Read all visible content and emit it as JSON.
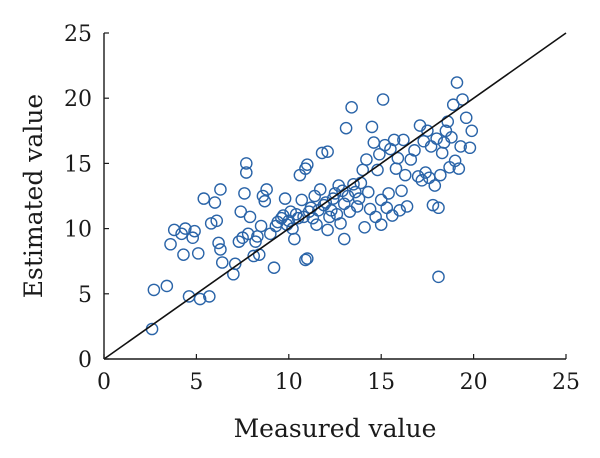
{
  "chart_data": {
    "type": "scatter",
    "xlabel": "Measured value",
    "ylabel": "Estimated value",
    "xlim": [
      0,
      25
    ],
    "ylim": [
      0,
      25
    ],
    "xticks": [
      "0",
      "5",
      "10",
      "15",
      "20",
      "25"
    ],
    "yticks": [
      "0",
      "5",
      "10",
      "15",
      "20",
      "25"
    ],
    "grid": false,
    "legend": "none",
    "reference_line": {
      "kind": "identity",
      "from": [
        0,
        0
      ],
      "to": [
        25,
        25
      ],
      "color": "#111111"
    },
    "series": [
      {
        "marker": "open-circle",
        "color": "#2a64a8",
        "points": [
          [
            2.6,
            2.3
          ],
          [
            2.7,
            5.3
          ],
          [
            3.4,
            5.6
          ],
          [
            3.6,
            8.8
          ],
          [
            3.8,
            9.9
          ],
          [
            4.2,
            9.6
          ],
          [
            4.3,
            8.0
          ],
          [
            4.4,
            10.0
          ],
          [
            4.6,
            4.8
          ],
          [
            4.8,
            9.3
          ],
          [
            4.9,
            9.8
          ],
          [
            5.1,
            8.1
          ],
          [
            5.2,
            4.6
          ],
          [
            5.4,
            12.3
          ],
          [
            5.7,
            4.8
          ],
          [
            5.8,
            10.4
          ],
          [
            6.0,
            12.0
          ],
          [
            6.1,
            10.6
          ],
          [
            6.2,
            8.9
          ],
          [
            6.3,
            13.0
          ],
          [
            6.3,
            8.4
          ],
          [
            6.4,
            7.4
          ],
          [
            7.0,
            6.5
          ],
          [
            7.1,
            7.3
          ],
          [
            7.3,
            9.0
          ],
          [
            7.4,
            11.3
          ],
          [
            7.5,
            9.3
          ],
          [
            7.6,
            12.7
          ],
          [
            7.7,
            14.3
          ],
          [
            7.7,
            15.0
          ],
          [
            7.8,
            9.6
          ],
          [
            7.9,
            10.9
          ],
          [
            8.1,
            7.9
          ],
          [
            8.2,
            9.0
          ],
          [
            8.3,
            9.4
          ],
          [
            8.4,
            8.0
          ],
          [
            8.5,
            10.2
          ],
          [
            8.6,
            12.5
          ],
          [
            8.7,
            12.1
          ],
          [
            8.8,
            13.0
          ],
          [
            9.0,
            9.6
          ],
          [
            9.2,
            7.0
          ],
          [
            9.3,
            10.2
          ],
          [
            9.4,
            10.5
          ],
          [
            9.6,
            10.8
          ],
          [
            9.7,
            11.0
          ],
          [
            9.8,
            12.3
          ],
          [
            9.9,
            10.3
          ],
          [
            10.0,
            10.6
          ],
          [
            10.1,
            11.3
          ],
          [
            10.2,
            10.0
          ],
          [
            10.3,
            9.2
          ],
          [
            10.4,
            11.1
          ],
          [
            10.5,
            10.8
          ],
          [
            10.6,
            14.1
          ],
          [
            10.7,
            12.2
          ],
          [
            10.8,
            10.9
          ],
          [
            10.9,
            7.6
          ],
          [
            10.9,
            14.6
          ],
          [
            11.0,
            7.7
          ],
          [
            11.0,
            14.9
          ],
          [
            11.1,
            11.3
          ],
          [
            11.2,
            11.6
          ],
          [
            11.3,
            10.8
          ],
          [
            11.4,
            12.5
          ],
          [
            11.5,
            10.3
          ],
          [
            11.6,
            11.4
          ],
          [
            11.7,
            13.0
          ],
          [
            11.8,
            15.8
          ],
          [
            11.9,
            11.8
          ],
          [
            12.0,
            12.0
          ],
          [
            12.1,
            15.9
          ],
          [
            12.1,
            9.9
          ],
          [
            12.2,
            10.9
          ],
          [
            12.3,
            11.4
          ],
          [
            12.4,
            12.3
          ],
          [
            12.5,
            12.7
          ],
          [
            12.6,
            11.1
          ],
          [
            12.7,
            13.3
          ],
          [
            12.8,
            10.4
          ],
          [
            12.9,
            12.9
          ],
          [
            13.0,
            11.9
          ],
          [
            13.0,
            9.2
          ],
          [
            13.1,
            17.7
          ],
          [
            13.2,
            12.5
          ],
          [
            13.3,
            11.3
          ],
          [
            13.4,
            19.3
          ],
          [
            13.5,
            13.4
          ],
          [
            13.6,
            12.8
          ],
          [
            13.7,
            11.7
          ],
          [
            13.8,
            12.3
          ],
          [
            13.9,
            13.5
          ],
          [
            14.0,
            14.5
          ],
          [
            14.1,
            10.1
          ],
          [
            14.2,
            15.3
          ],
          [
            14.3,
            12.8
          ],
          [
            14.4,
            11.5
          ],
          [
            14.5,
            17.8
          ],
          [
            14.6,
            16.6
          ],
          [
            14.7,
            10.9
          ],
          [
            14.8,
            14.5
          ],
          [
            14.9,
            15.7
          ],
          [
            15.0,
            10.3
          ],
          [
            15.0,
            12.2
          ],
          [
            15.1,
            19.9
          ],
          [
            15.2,
            16.4
          ],
          [
            15.3,
            11.6
          ],
          [
            15.4,
            12.7
          ],
          [
            15.5,
            16.1
          ],
          [
            15.6,
            11.0
          ],
          [
            15.7,
            16.8
          ],
          [
            15.8,
            14.6
          ],
          [
            15.9,
            15.4
          ],
          [
            16.0,
            11.4
          ],
          [
            16.1,
            12.9
          ],
          [
            16.2,
            16.8
          ],
          [
            16.3,
            14.1
          ],
          [
            16.4,
            11.7
          ],
          [
            16.6,
            15.3
          ],
          [
            16.8,
            16.0
          ],
          [
            17.0,
            14.0
          ],
          [
            17.1,
            17.9
          ],
          [
            17.2,
            13.7
          ],
          [
            17.3,
            16.7
          ],
          [
            17.4,
            14.3
          ],
          [
            17.5,
            17.5
          ],
          [
            17.6,
            13.9
          ],
          [
            17.7,
            16.3
          ],
          [
            17.8,
            11.8
          ],
          [
            17.9,
            13.3
          ],
          [
            18.0,
            16.9
          ],
          [
            18.1,
            11.6
          ],
          [
            18.1,
            6.3
          ],
          [
            18.2,
            14.1
          ],
          [
            18.3,
            15.8
          ],
          [
            18.4,
            16.6
          ],
          [
            18.5,
            17.5
          ],
          [
            18.6,
            18.2
          ],
          [
            18.7,
            14.7
          ],
          [
            18.8,
            17.0
          ],
          [
            18.9,
            19.5
          ],
          [
            19.0,
            15.2
          ],
          [
            19.1,
            21.2
          ],
          [
            19.2,
            14.6
          ],
          [
            19.3,
            16.3
          ],
          [
            19.4,
            19.9
          ],
          [
            19.6,
            18.5
          ],
          [
            19.8,
            16.2
          ],
          [
            19.9,
            17.5
          ]
        ]
      }
    ]
  }
}
